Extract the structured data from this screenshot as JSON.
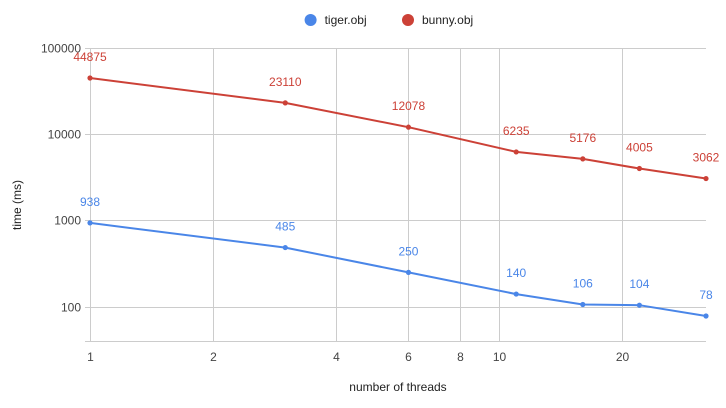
{
  "chart_data": {
    "type": "line",
    "x_scale": "log",
    "y_scale": "log",
    "xlabel": "number of threads",
    "ylabel": "time (ms)",
    "xlim": [
      1,
      32
    ],
    "ylim": [
      40,
      100000
    ],
    "x_ticks": [
      1,
      2,
      4,
      6,
      8,
      10,
      20
    ],
    "y_ticks": [
      100,
      1000,
      10000,
      100000
    ],
    "grid": true,
    "legend_position": "top-center",
    "x": [
      1,
      3,
      6,
      11,
      16,
      22,
      32
    ],
    "series": [
      {
        "name": "tiger.obj",
        "color": "#4a86e8",
        "values": [
          938,
          485,
          250,
          140,
          106,
          104,
          78
        ]
      },
      {
        "name": "bunny.obj",
        "color": "#cc4137",
        "values": [
          44875,
          23110,
          12078,
          6235,
          5176,
          4005,
          3062
        ]
      }
    ]
  }
}
